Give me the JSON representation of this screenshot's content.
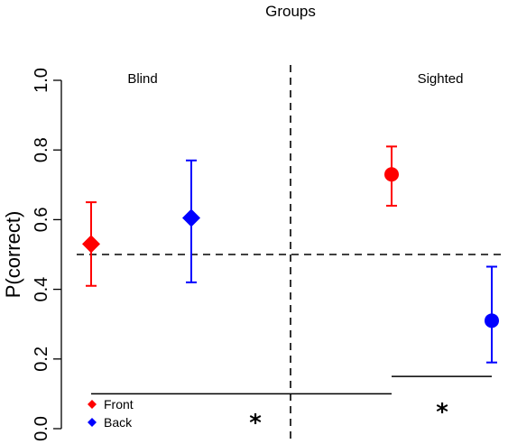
{
  "chart_data": {
    "type": "scatter",
    "title": "Groups",
    "xlabel": "",
    "ylabel": "P(correct)",
    "ylim": [
      0,
      1
    ],
    "yticks": [
      "0.0",
      "0.2",
      "0.4",
      "0.6",
      "0.8",
      "1.0"
    ],
    "grid": false,
    "panels": [
      "Blind",
      "Sighted"
    ],
    "chance_level": 0.5,
    "series": [
      {
        "name": "Front",
        "color": "#ff0000",
        "points": [
          {
            "panel": "Blind",
            "marker": "diamond",
            "y": 0.53,
            "ci_low": 0.41,
            "ci_high": 0.65
          },
          {
            "panel": "Sighted",
            "marker": "circle",
            "y": 0.73,
            "ci_low": 0.64,
            "ci_high": 0.81
          }
        ]
      },
      {
        "name": "Back",
        "color": "#0000ff",
        "points": [
          {
            "panel": "Blind",
            "marker": "diamond",
            "y": 0.605,
            "ci_low": 0.42,
            "ci_high": 0.77
          },
          {
            "panel": "Sighted",
            "marker": "circle",
            "y": 0.31,
            "ci_low": 0.19,
            "ci_high": 0.465
          }
        ]
      }
    ],
    "significance": [
      {
        "level": 0.1,
        "label": "*"
      },
      {
        "level": 0.15,
        "label": "*"
      }
    ],
    "legend": {
      "position": "bottom-left",
      "items": [
        {
          "label": "Front",
          "color": "#ff0000",
          "marker": "diamond"
        },
        {
          "label": "Back",
          "color": "#0000ff",
          "marker": "diamond"
        }
      ]
    }
  }
}
